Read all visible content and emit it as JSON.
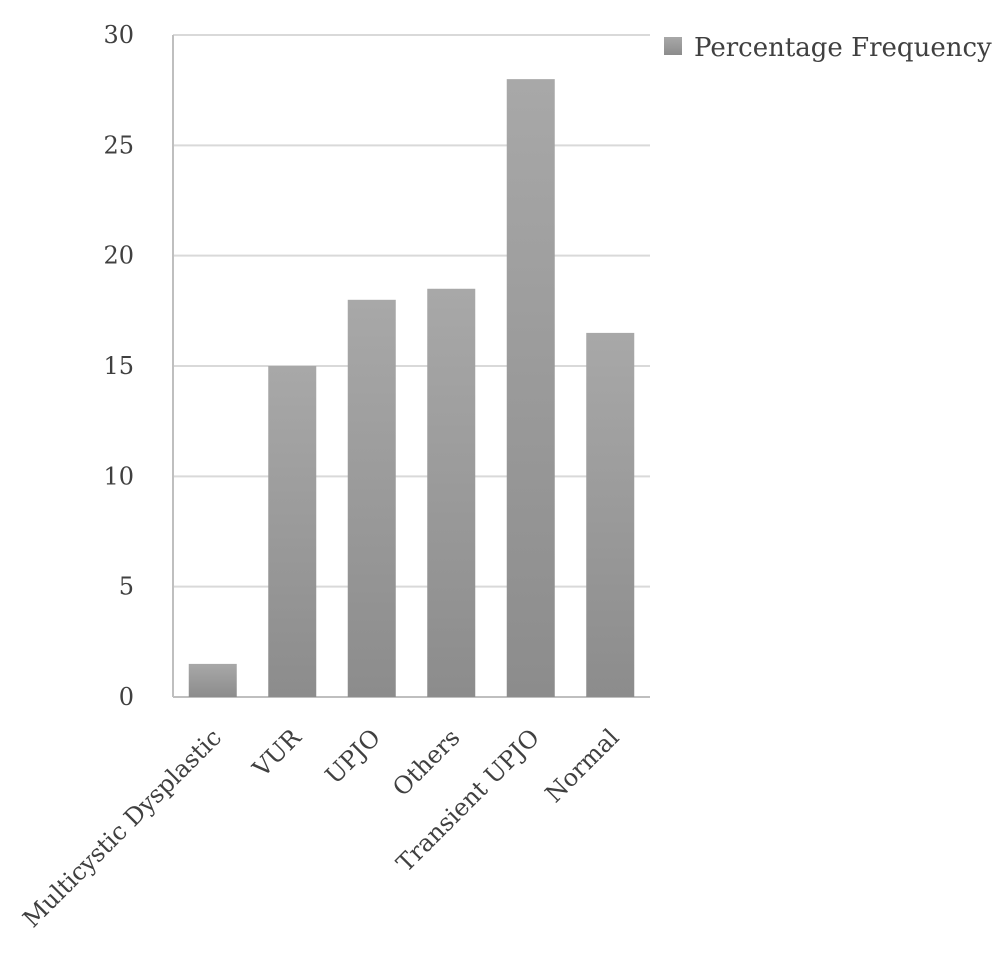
{
  "chart_data": {
    "type": "bar",
    "title": "",
    "xlabel": "",
    "ylabel": "",
    "categories": [
      "Multicystic Dysplastic",
      "VUR",
      "UPJO",
      "Others",
      "Transient UPJO",
      "Normal"
    ],
    "series": [
      {
        "name": "Percentage Frequency",
        "values": [
          1.5,
          15,
          18,
          18.5,
          28,
          16.5
        ]
      }
    ],
    "ylim": [
      0,
      30
    ],
    "yticks": [
      0,
      5,
      10,
      15,
      20,
      25,
      30
    ],
    "grid": true,
    "legend_position": "top-right",
    "colors": {
      "bar_light": "#a8a8a8",
      "bar_dark": "#8c8c8c",
      "grid": "#d9d9d9",
      "axis": "#bfbfbf",
      "text": "#404040"
    }
  }
}
